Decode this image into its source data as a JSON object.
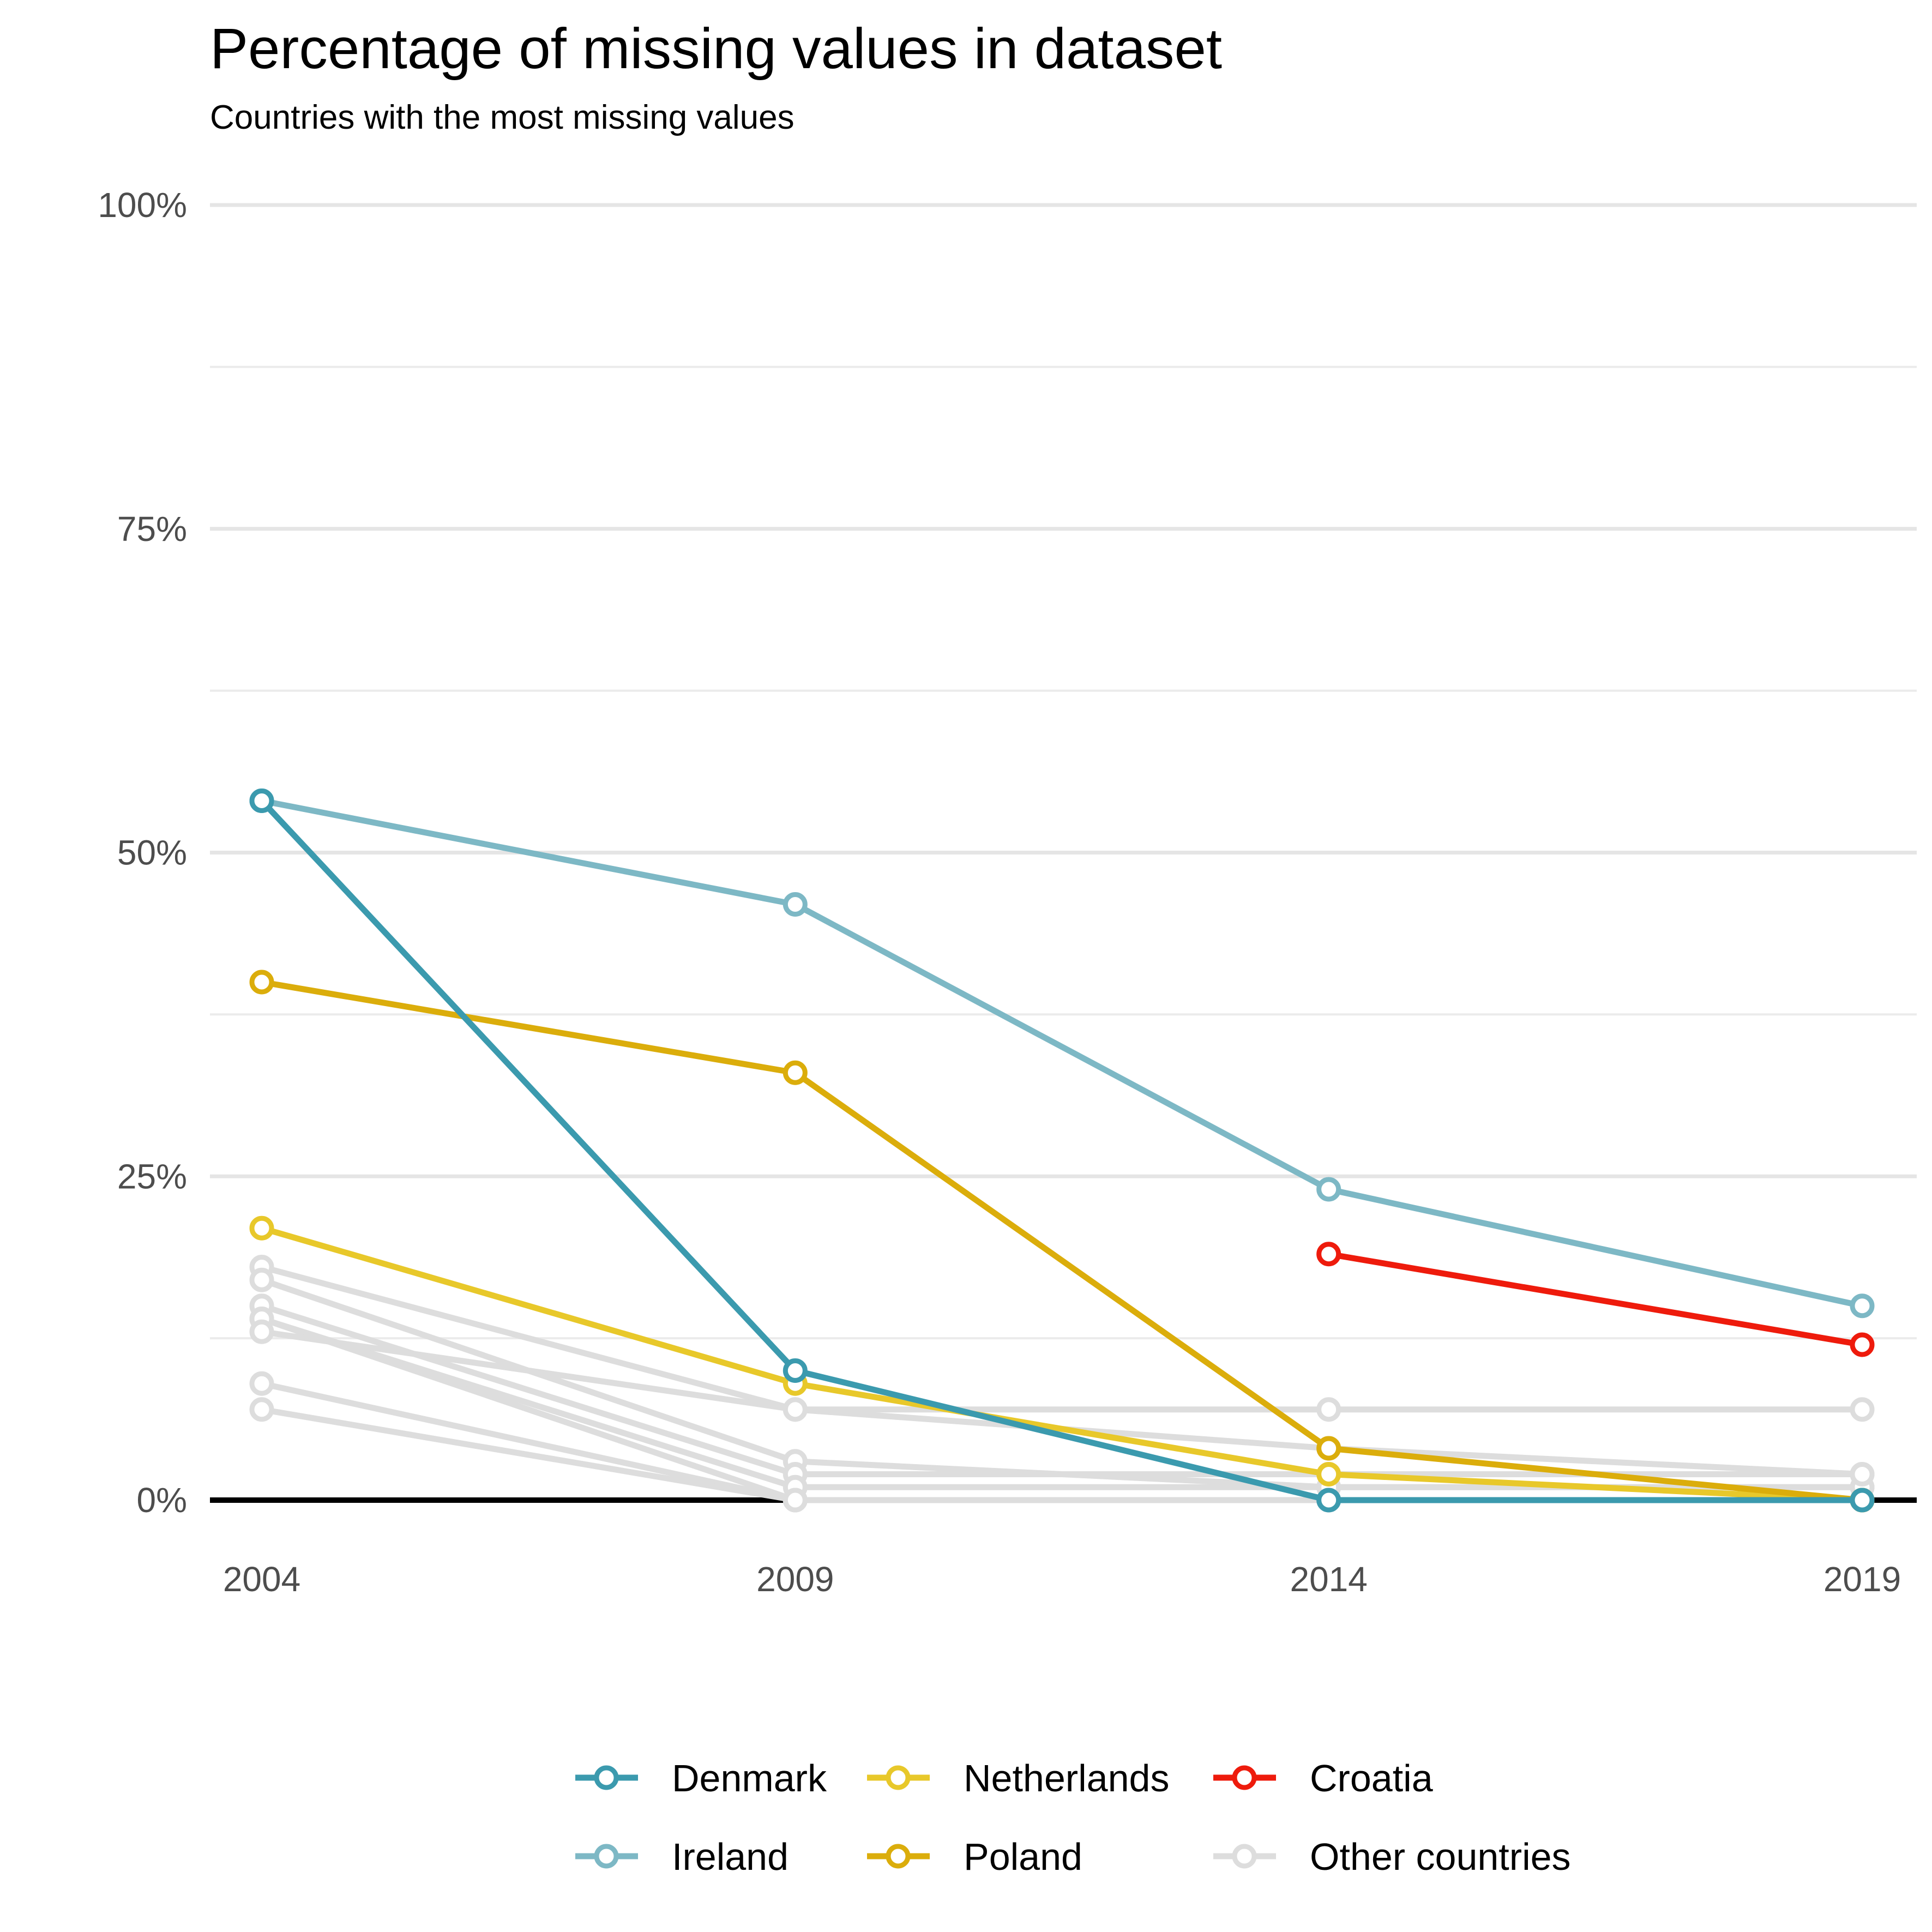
{
  "chart_data": {
    "type": "line",
    "title": "Percentage of missing values in dataset",
    "subtitle": "Countries with the most missing values",
    "xlabel": "",
    "ylabel": "",
    "x": [
      2004,
      2009,
      2014,
      2019
    ],
    "x_tick_labels": [
      "2004",
      "2009",
      "2014",
      "2019"
    ],
    "ylim": [
      0,
      100
    ],
    "y_ticks": [
      0,
      25,
      50,
      75,
      100
    ],
    "y_tick_labels": [
      "0%",
      "25%",
      "50%",
      "75%",
      "100%"
    ],
    "grid": true,
    "legend_position": "bottom",
    "series": [
      {
        "name": "Other countries",
        "color": "#dddddd",
        "values": [
          18,
          7,
          7,
          7
        ]
      },
      {
        "name": "Other countries",
        "color": "#dddddd",
        "values": [
          17,
          3,
          1,
          1
        ]
      },
      {
        "name": "Other countries",
        "color": "#dddddd",
        "values": [
          15,
          2,
          2,
          2
        ]
      },
      {
        "name": "Other countries",
        "color": "#dddddd",
        "values": [
          14,
          0,
          0,
          0
        ]
      },
      {
        "name": "Other countries",
        "color": "#dddddd",
        "values": [
          14,
          1,
          1,
          1
        ]
      },
      {
        "name": "Other countries",
        "color": "#dddddd",
        "values": [
          13,
          7,
          4,
          2
        ]
      },
      {
        "name": "Other countries",
        "color": "#dddddd",
        "values": [
          9,
          0,
          0,
          0
        ]
      },
      {
        "name": "Other countries",
        "color": "#dddddd",
        "values": [
          7,
          0,
          0,
          0
        ]
      },
      {
        "name": "Croatia",
        "color": "#ee1b0c",
        "values": [
          null,
          null,
          19,
          12
        ]
      },
      {
        "name": "Netherlands",
        "color": "#e8c82a",
        "values": [
          21,
          9,
          2,
          0
        ]
      },
      {
        "name": "Poland",
        "color": "#dbad0b",
        "values": [
          40,
          33,
          4,
          0
        ]
      },
      {
        "name": "Ireland",
        "color": "#7db8c5",
        "values": [
          54,
          46,
          24,
          15
        ]
      },
      {
        "name": "Denmark",
        "color": "#3b9aae",
        "values": [
          54,
          10,
          0,
          0
        ]
      }
    ],
    "legend": [
      {
        "name": "Denmark",
        "color": "#3b9aae"
      },
      {
        "name": "Ireland",
        "color": "#7db8c5"
      },
      {
        "name": "Netherlands",
        "color": "#e8c82a"
      },
      {
        "name": "Poland",
        "color": "#dbad0b"
      },
      {
        "name": "Croatia",
        "color": "#ee1b0c"
      },
      {
        "name": "Other countries",
        "color": "#dddddd"
      }
    ]
  }
}
